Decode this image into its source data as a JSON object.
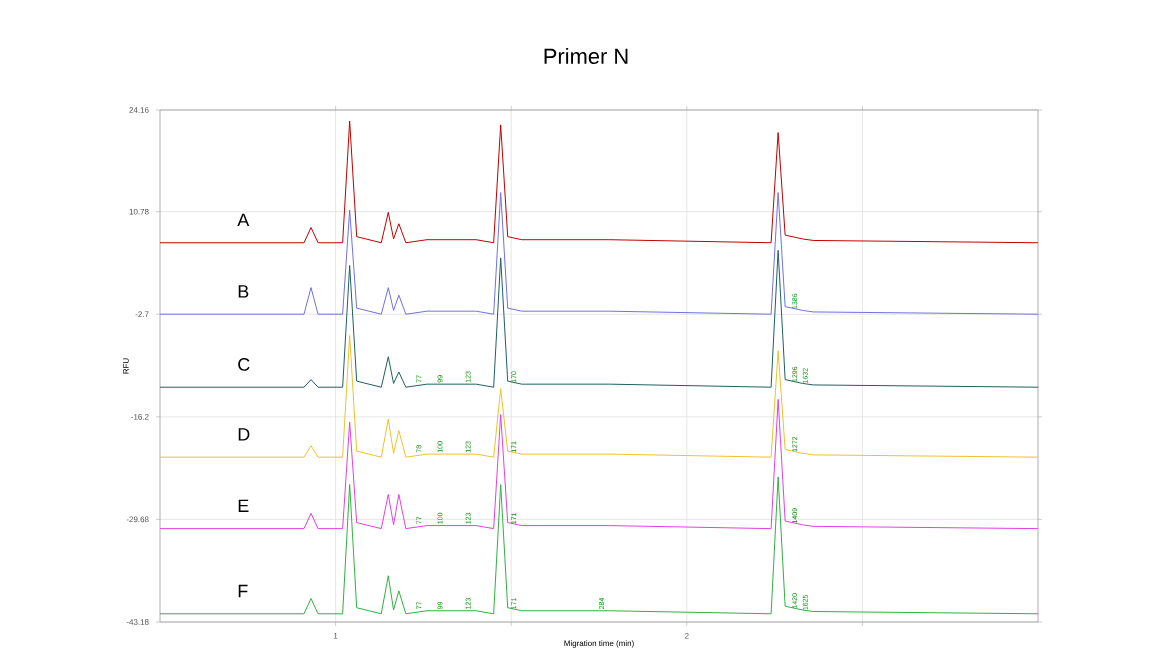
{
  "chart_data": {
    "type": "line",
    "title": "Primer N",
    "xlabel": "Migration time (min)",
    "ylabel": "RFU",
    "x": [
      0.5,
      0.91,
      0.93,
      0.95,
      1.02,
      1.04,
      1.06,
      1.13,
      1.15,
      1.165,
      1.18,
      1.2,
      1.26,
      1.32,
      1.4,
      1.45,
      1.47,
      1.49,
      1.53,
      1.78,
      2.24,
      2.26,
      2.28,
      2.33,
      2.36,
      3.0
    ],
    "series": [
      {
        "name": "A",
        "color": "#c00000",
        "values": [
          6.7,
          6.7,
          8.7,
          6.7,
          6.7,
          22.7,
          7.5,
          6.7,
          10.7,
          7.2,
          9.2,
          6.7,
          7.1,
          7.1,
          7.1,
          6.7,
          22.2,
          7.5,
          7.1,
          7.1,
          6.7,
          21.2,
          7.7,
          7.2,
          7.0,
          6.7
        ]
      },
      {
        "name": "B",
        "color": "#7070e0",
        "values": [
          -2.7,
          -2.7,
          0.8,
          -2.7,
          -2.7,
          11.0,
          -1.9,
          -2.7,
          0.8,
          -2.2,
          -0.2,
          -2.7,
          -2.3,
          -2.3,
          -2.3,
          -2.7,
          13.3,
          -1.9,
          -2.3,
          -2.3,
          -2.7,
          13.3,
          -1.7,
          -2.2,
          -2.4,
          -2.7
        ]
      },
      {
        "name": "C",
        "color": "#1f5f5f",
        "values": [
          -12.3,
          -12.3,
          -11.3,
          -12.3,
          -12.3,
          3.7,
          -11.5,
          -12.3,
          -8.3,
          -11.8,
          -10.3,
          -12.3,
          -11.9,
          -11.9,
          -11.9,
          -12.3,
          4.7,
          -11.5,
          -11.9,
          -11.9,
          -12.3,
          5.7,
          -11.3,
          -11.8,
          -12.0,
          -12.3
        ]
      },
      {
        "name": "D",
        "color": "#f0c030",
        "values": [
          -21.5,
          -21.5,
          -20.0,
          -21.5,
          -21.5,
          -5.5,
          -20.7,
          -21.5,
          -16.5,
          -21.0,
          -18.0,
          -21.5,
          -21.1,
          -21.1,
          -21.1,
          -21.5,
          -12.5,
          -20.7,
          -21.1,
          -21.1,
          -21.5,
          -7.5,
          -20.5,
          -21.0,
          -21.2,
          -21.5
        ]
      },
      {
        "name": "E",
        "color": "#e040e0",
        "values": [
          -30.9,
          -30.9,
          -28.9,
          -30.9,
          -30.9,
          -16.9,
          -30.1,
          -30.9,
          -26.4,
          -30.4,
          -26.4,
          -30.9,
          -30.5,
          -30.5,
          -30.5,
          -30.9,
          -15.9,
          -30.1,
          -30.5,
          -30.5,
          -30.9,
          -13.9,
          -29.9,
          -30.4,
          -30.6,
          -30.9
        ]
      },
      {
        "name": "F",
        "color": "#30b040",
        "values": [
          -42.1,
          -42.1,
          -40.1,
          -42.1,
          -42.1,
          -25.1,
          -41.3,
          -42.1,
          -37.1,
          -41.6,
          -39.1,
          -42.1,
          -41.7,
          -41.7,
          -41.7,
          -42.1,
          -25.1,
          -41.3,
          -41.7,
          -41.7,
          -42.1,
          -24.1,
          -41.1,
          -41.6,
          -41.8,
          -42.1
        ]
      }
    ],
    "xlim": [
      0.5,
      3.0
    ],
    "xticks": [
      {
        "value": 1,
        "label": "1"
      },
      {
        "value": 1.5,
        "label": null
      },
      {
        "value": 2,
        "label": "2"
      },
      {
        "value": 2.5,
        "label": null
      }
    ],
    "ylim": [
      -43.18,
      24.16
    ],
    "yticks": [
      24.16,
      10.78,
      -2.7,
      -16.2,
      -29.68,
      -43.18
    ],
    "grid": true,
    "marker": "none",
    "line_style": "solid",
    "annotations": [
      {
        "text": "1386",
        "x": 2.33,
        "y": -2.2
      },
      {
        "text": "77",
        "x": 1.26,
        "y": -11.9
      },
      {
        "text": "99",
        "x": 1.32,
        "y": -11.9
      },
      {
        "text": "123",
        "x": 1.4,
        "y": -11.9
      },
      {
        "text": "170",
        "x": 1.53,
        "y": -11.9
      },
      {
        "text": "1296",
        "x": 2.33,
        "y": -11.8
      },
      {
        "text": "1632",
        "x": 2.36,
        "y": -12.0
      },
      {
        "text": "78",
        "x": 1.26,
        "y": -21.1
      },
      {
        "text": "100",
        "x": 1.32,
        "y": -21.1
      },
      {
        "text": "123",
        "x": 1.4,
        "y": -21.1
      },
      {
        "text": "171",
        "x": 1.53,
        "y": -21.1
      },
      {
        "text": "1272",
        "x": 2.33,
        "y": -21.0
      },
      {
        "text": "77",
        "x": 1.26,
        "y": -30.5
      },
      {
        "text": "100",
        "x": 1.32,
        "y": -30.5
      },
      {
        "text": "123",
        "x": 1.4,
        "y": -30.5
      },
      {
        "text": "171",
        "x": 1.53,
        "y": -30.5
      },
      {
        "text": "1409",
        "x": 2.33,
        "y": -30.4
      },
      {
        "text": "77",
        "x": 1.26,
        "y": -41.7
      },
      {
        "text": "99",
        "x": 1.32,
        "y": -41.7
      },
      {
        "text": "123",
        "x": 1.4,
        "y": -41.7
      },
      {
        "text": "171",
        "x": 1.53,
        "y": -41.7
      },
      {
        "text": "284",
        "x": 1.78,
        "y": -41.7
      },
      {
        "text": "1420",
        "x": 2.33,
        "y": -41.6
      },
      {
        "text": "1625",
        "x": 2.36,
        "y": -41.8
      }
    ]
  }
}
